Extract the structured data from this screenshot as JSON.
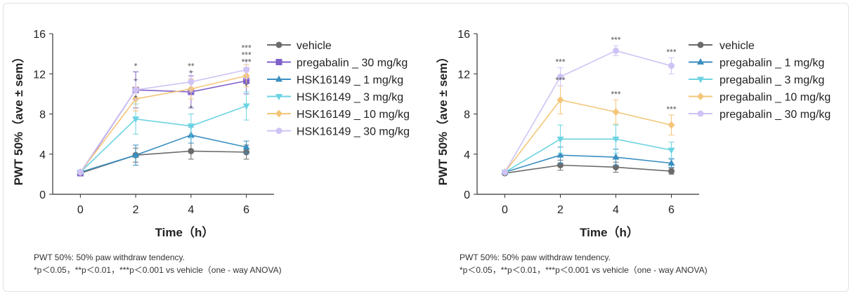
{
  "chart_data": [
    {
      "type": "line",
      "x": [
        0,
        2,
        4,
        6
      ],
      "xlabel": "Time（h）",
      "ylabel": "PWT 50%（ave ± sem）",
      "xticks": [
        "0",
        "2",
        "4",
        "6"
      ],
      "yticks": [
        "0",
        "4",
        "8",
        "12",
        "16"
      ],
      "ylim": [
        0,
        16
      ],
      "xlim": [
        -1,
        7
      ],
      "series": [
        {
          "name": " vehicle",
          "color": "#6b6b6b",
          "marker": "circle",
          "values": [
            2.1,
            3.9,
            4.3,
            4.2
          ],
          "err": [
            0.2,
            0.7,
            0.8,
            0.7
          ],
          "sig": [
            "",
            "",
            "",
            ""
          ]
        },
        {
          "name": "pregabalin _ 30 mg/kg",
          "color": "#8060c8",
          "marker": "square",
          "values": [
            2.1,
            10.4,
            10.2,
            11.3
          ],
          "err": [
            0.2,
            1.8,
            1.6,
            1.3
          ],
          "sig": [
            "",
            "*",
            "**",
            "***"
          ]
        },
        {
          "name": "HSK16149 _ 1 mg/kg",
          "color": "#3a8fc0",
          "marker": "triangle-up",
          "values": [
            2.2,
            3.9,
            5.9,
            4.7
          ],
          "err": [
            0.2,
            1.0,
            0.8,
            0.6
          ],
          "sig": [
            "",
            "",
            "",
            ""
          ]
        },
        {
          "name": "HSK16149 _ 3 mg/kg",
          "color": "#6cd3e2",
          "marker": "triangle-down",
          "values": [
            2.2,
            7.5,
            6.8,
            8.8
          ],
          "err": [
            0.2,
            1.5,
            1.2,
            1.4
          ],
          "sig": [
            "",
            "*",
            "*",
            "*"
          ]
        },
        {
          "name": "HSK16149 _ 10 mg/kg",
          "color": "#f4c67a",
          "marker": "diamond",
          "values": [
            2.2,
            9.5,
            10.5,
            11.8
          ],
          "err": [
            0.2,
            1.2,
            1.0,
            1.1
          ],
          "sig": [
            "",
            "*",
            "*",
            "***"
          ]
        },
        {
          "name": "HSK16149 _ 30 mg/kg",
          "color": "#cfc3f5",
          "marker": "circle",
          "values": [
            2.2,
            10.4,
            11.2,
            12.4
          ],
          "err": [
            0.2,
            1.0,
            1.0,
            0.9
          ],
          "sig": [
            "",
            "",
            "",
            "***"
          ]
        }
      ]
    },
    {
      "type": "line",
      "x": [
        0,
        2,
        4,
        6
      ],
      "xlabel": "Time（h）",
      "ylabel": "PWT 50%（ave ± sem）",
      "xticks": [
        "0",
        "2",
        "4",
        "6"
      ],
      "yticks": [
        "0",
        "4",
        "8",
        "12",
        "16"
      ],
      "ylim": [
        0,
        16
      ],
      "xlim": [
        -1,
        7
      ],
      "series": [
        {
          "name": " vehicle",
          "color": "#6b6b6b",
          "marker": "circle",
          "values": [
            2.1,
            2.9,
            2.7,
            2.3
          ],
          "err": [
            0.2,
            0.5,
            0.5,
            0.3
          ],
          "sig": [
            "",
            "",
            "",
            ""
          ]
        },
        {
          "name": "pregabalin _ 1 mg/kg",
          "color": "#3a8fc0",
          "marker": "triangle-up",
          "values": [
            2.2,
            3.9,
            3.7,
            3.1
          ],
          "err": [
            0.2,
            0.8,
            0.8,
            0.4
          ],
          "sig": [
            "",
            "",
            "",
            ""
          ]
        },
        {
          "name": "pregabalin _ 3 mg/kg",
          "color": "#6cd3e2",
          "marker": "triangle-down",
          "values": [
            2.2,
            5.5,
            5.5,
            4.4
          ],
          "err": [
            0.2,
            1.4,
            1.4,
            0.8
          ],
          "sig": [
            "",
            "",
            "",
            ""
          ]
        },
        {
          "name": "pregabalin _ 10 mg/kg",
          "color": "#f4c67a",
          "marker": "diamond",
          "values": [
            2.2,
            9.4,
            8.2,
            6.9
          ],
          "err": [
            0.2,
            1.4,
            1.2,
            1.0
          ],
          "sig": [
            "",
            "***",
            "***",
            "***"
          ]
        },
        {
          "name": "pregabalin _ 30 mg/kg",
          "color": "#cfc3f5",
          "marker": "circle",
          "values": [
            2.2,
            11.7,
            14.3,
            12.8
          ],
          "err": [
            0.2,
            0.9,
            0.5,
            0.8
          ],
          "sig": [
            "",
            "***",
            "***",
            "***"
          ]
        }
      ]
    }
  ],
  "footnotes": [
    {
      "line1": "PWT 50%: 50% paw withdraw tendency.",
      "line2": "*p＜0.05，**p＜0.01，***p＜0.001 vs vehicle（one - way ANOVA)"
    },
    {
      "line1": "PWT 50%: 50% paw withdraw tendency.",
      "line2": "*p＜0.05，**p＜0.01，***p＜0.001 vs vehicle（one - way ANOVA)"
    }
  ]
}
